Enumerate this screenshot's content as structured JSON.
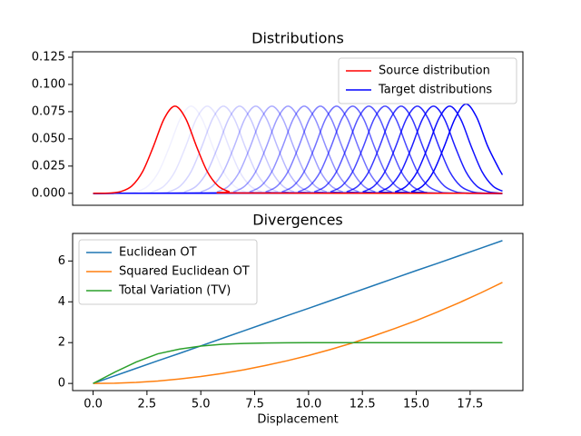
{
  "chart_data": [
    {
      "type": "line",
      "title": "Distributions",
      "xlim": [
        -0.95,
        19.95
      ],
      "ylim": [
        -0.011,
        0.13
      ],
      "yticks": [
        {
          "value": 0,
          "label": "0.000"
        },
        {
          "value": 0.025,
          "label": "0.025"
        },
        {
          "value": 0.05,
          "label": "0.050"
        },
        {
          "value": 0.075,
          "label": "0.075"
        },
        {
          "value": 0.1,
          "label": "0.100"
        },
        {
          "value": 0.125,
          "label": "0.125"
        }
      ],
      "legend": "upper right",
      "series": [
        {
          "name": "Source distribution",
          "color": "#ff0000",
          "x": [
            0,
            0.8,
            1.3,
            1.8,
            2.3,
            2.8,
            3.3,
            3.8,
            4.3,
            4.8,
            5.3,
            5.8,
            6.3,
            6.8,
            19
          ],
          "values": [
            0,
            0.0003,
            0.0017,
            0.0068,
            0.02,
            0.0431,
            0.0686,
            0.08,
            0.0686,
            0.0431,
            0.02,
            0.0068,
            0.0017,
            0.0003,
            0
          ]
        }
      ],
      "targets": {
        "name": "Target distributions",
        "color": "#0000ff",
        "curves": [
          {
            "alpha": 0.06,
            "x": [
              0,
              1.55,
              2.05,
              2.55,
              3.05,
              3.55,
              4.05,
              4.55,
              5.05,
              5.55,
              6.05,
              6.55,
              7.05,
              7.55,
              19
            ],
            "values": [
              0,
              0.0003,
              0.0017,
              0.0068,
              0.02,
              0.0431,
              0.0686,
              0.08,
              0.0686,
              0.0431,
              0.02,
              0.0068,
              0.0017,
              0.0003,
              0
            ]
          },
          {
            "alpha": 0.11,
            "x": [
              0,
              2.3,
              2.8,
              3.3,
              3.8,
              4.3,
              4.8,
              5.3,
              5.8,
              6.3,
              6.8,
              7.3,
              7.8,
              8.3,
              19
            ],
            "values": [
              0,
              0.0003,
              0.0017,
              0.0068,
              0.02,
              0.0431,
              0.0686,
              0.08,
              0.0686,
              0.0431,
              0.02,
              0.0068,
              0.0017,
              0.0003,
              0
            ]
          },
          {
            "alpha": 0.17,
            "x": [
              0,
              3.05,
              3.55,
              4.05,
              4.55,
              5.05,
              5.55,
              6.05,
              6.55,
              7.05,
              7.55,
              8.05,
              8.55,
              9.05,
              19
            ],
            "values": [
              0,
              0.0003,
              0.0017,
              0.0068,
              0.02,
              0.0431,
              0.0686,
              0.08,
              0.0686,
              0.0431,
              0.02,
              0.0068,
              0.0017,
              0.0003,
              0
            ]
          },
          {
            "alpha": 0.22,
            "x": [
              0,
              3.8,
              4.3,
              4.8,
              5.3,
              5.8,
              6.3,
              6.8,
              7.3,
              7.8,
              8.3,
              8.8,
              9.3,
              9.8,
              19
            ],
            "values": [
              0,
              0.0003,
              0.0017,
              0.0068,
              0.02,
              0.0431,
              0.0686,
              0.08,
              0.0686,
              0.0431,
              0.02,
              0.0068,
              0.0017,
              0.0003,
              0
            ]
          },
          {
            "alpha": 0.28,
            "x": [
              0,
              4.55,
              5.05,
              5.55,
              6.05,
              6.55,
              7.05,
              7.55,
              8.05,
              8.55,
              9.05,
              9.55,
              10.05,
              10.55,
              19
            ],
            "values": [
              0,
              0.0003,
              0.0017,
              0.0068,
              0.02,
              0.0431,
              0.0686,
              0.08,
              0.0686,
              0.0431,
              0.02,
              0.0068,
              0.0017,
              0.0003,
              0
            ]
          },
          {
            "alpha": 0.33,
            "x": [
              0,
              5.3,
              5.8,
              6.3,
              6.8,
              7.3,
              7.8,
              8.3,
              8.8,
              9.3,
              9.8,
              10.3,
              10.8,
              11.3,
              19
            ],
            "values": [
              0,
              0.0003,
              0.0017,
              0.0068,
              0.02,
              0.0431,
              0.0686,
              0.08,
              0.0686,
              0.0431,
              0.02,
              0.0068,
              0.0017,
              0.0003,
              0
            ]
          },
          {
            "alpha": 0.39,
            "x": [
              0,
              6.05,
              6.55,
              7.05,
              7.55,
              8.05,
              8.55,
              9.05,
              9.55,
              10.05,
              10.55,
              11.05,
              11.55,
              12.05,
              19
            ],
            "values": [
              0,
              0.0003,
              0.0017,
              0.0068,
              0.02,
              0.0431,
              0.0686,
              0.08,
              0.0686,
              0.0431,
              0.02,
              0.0068,
              0.0017,
              0.0003,
              0
            ]
          },
          {
            "alpha": 0.44,
            "x": [
              0,
              6.8,
              7.3,
              7.8,
              8.3,
              8.8,
              9.3,
              9.8,
              10.3,
              10.8,
              11.3,
              11.8,
              12.3,
              12.8,
              19
            ],
            "values": [
              0,
              0.0003,
              0.0017,
              0.0068,
              0.02,
              0.0431,
              0.0686,
              0.08,
              0.0686,
              0.0431,
              0.02,
              0.0068,
              0.0017,
              0.0003,
              0
            ]
          },
          {
            "alpha": 0.5,
            "x": [
              0,
              7.55,
              8.05,
              8.55,
              9.05,
              9.55,
              10.05,
              10.55,
              11.05,
              11.55,
              12.05,
              12.55,
              13.05,
              13.55,
              19
            ],
            "values": [
              0,
              0.0003,
              0.0017,
              0.0068,
              0.02,
              0.0431,
              0.0686,
              0.08,
              0.0686,
              0.0431,
              0.02,
              0.0068,
              0.0017,
              0.0003,
              0
            ]
          },
          {
            "alpha": 0.56,
            "x": [
              0,
              8.3,
              8.8,
              9.3,
              9.8,
              10.3,
              10.8,
              11.3,
              11.8,
              12.3,
              12.8,
              13.3,
              13.8,
              14.3,
              19
            ],
            "values": [
              0,
              0.0003,
              0.0017,
              0.0068,
              0.02,
              0.0431,
              0.0686,
              0.08,
              0.0686,
              0.0431,
              0.02,
              0.0068,
              0.0017,
              0.0003,
              0
            ]
          },
          {
            "alpha": 0.61,
            "x": [
              0,
              9.05,
              9.55,
              10.05,
              10.55,
              11.05,
              11.55,
              12.05,
              12.55,
              13.05,
              13.55,
              14.05,
              14.55,
              15.05,
              19
            ],
            "values": [
              0,
              0.0003,
              0.0017,
              0.0068,
              0.02,
              0.0431,
              0.0686,
              0.08,
              0.0686,
              0.0431,
              0.02,
              0.0068,
              0.0017,
              0.0003,
              0
            ]
          },
          {
            "alpha": 0.67,
            "x": [
              0,
              9.8,
              10.3,
              10.8,
              11.3,
              11.8,
              12.3,
              12.8,
              13.3,
              13.8,
              14.3,
              14.8,
              15.3,
              15.8,
              19
            ],
            "values": [
              0,
              0.0003,
              0.0017,
              0.0068,
              0.02,
              0.0431,
              0.0686,
              0.08,
              0.0686,
              0.0431,
              0.02,
              0.0068,
              0.0017,
              0.0003,
              0
            ]
          },
          {
            "alpha": 0.72,
            "x": [
              0,
              10.55,
              11.05,
              11.55,
              12.05,
              12.55,
              13.05,
              13.55,
              14.05,
              14.55,
              15.05,
              15.55,
              16.05,
              16.55,
              19
            ],
            "values": [
              0,
              0.0003,
              0.0017,
              0.0068,
              0.02,
              0.0431,
              0.0686,
              0.08,
              0.0686,
              0.0431,
              0.02,
              0.0068,
              0.0017,
              0.0003,
              0
            ]
          },
          {
            "alpha": 0.78,
            "x": [
              0,
              11.3,
              11.8,
              12.3,
              12.8,
              13.3,
              13.8,
              14.3,
              14.8,
              15.3,
              15.8,
              16.3,
              16.8,
              17.3,
              19
            ],
            "values": [
              0,
              0.0003,
              0.0017,
              0.0068,
              0.02,
              0.0431,
              0.0686,
              0.08,
              0.0686,
              0.0431,
              0.02,
              0.0068,
              0.0017,
              0.0003,
              0
            ]
          },
          {
            "alpha": 0.83,
            "x": [
              0,
              12.05,
              12.55,
              13.05,
              13.55,
              14.05,
              14.55,
              15.05,
              15.55,
              16.05,
              16.55,
              17.05,
              17.55,
              18.05,
              19
            ],
            "values": [
              0,
              0.0003,
              0.0017,
              0.0068,
              0.02,
              0.0431,
              0.0686,
              0.08,
              0.0686,
              0.0431,
              0.02,
              0.0068,
              0.0017,
              0.0003,
              0
            ]
          },
          {
            "alpha": 0.89,
            "x": [
              0,
              12.8,
              13.3,
              13.8,
              14.3,
              14.8,
              15.3,
              15.8,
              16.3,
              16.8,
              17.3,
              17.8,
              18.3,
              18.8,
              19
            ],
            "values": [
              0,
              0.0003,
              0.0017,
              0.0068,
              0.02,
              0.0431,
              0.0686,
              0.08,
              0.0686,
              0.0431,
              0.02,
              0.0068,
              0.0017,
              0.0003,
              0
            ]
          },
          {
            "alpha": 0.94,
            "x": [
              0,
              13.55,
              14.05,
              14.55,
              15.05,
              15.55,
              16.05,
              16.55,
              17.05,
              17.55,
              18.05,
              18.55,
              19
            ],
            "values": [
              0,
              0.0003,
              0.0017,
              0.0068,
              0.02,
              0.0431,
              0.0686,
              0.08,
              0.0686,
              0.0431,
              0.02,
              0.0068,
              0.002
            ]
          },
          {
            "alpha": 1,
            "x": [
              0,
              14.3,
              14.8,
              15.3,
              15.8,
              16.3,
              16.8,
              17.3,
              17.8,
              18.3,
              18.8,
              19
            ],
            "values": [
              0,
              0.0003,
              0.0017,
              0.0068,
              0.02,
              0.0431,
              0.0686,
              0.082,
              0.07,
              0.044,
              0.024,
              0.017
            ]
          }
        ]
      }
    },
    {
      "type": "line",
      "title": "Divergences",
      "xlabel": "Displacement",
      "x": [
        0,
        1,
        2,
        3,
        4,
        5,
        6,
        7,
        8,
        9,
        10,
        11,
        12,
        13,
        14,
        15,
        16,
        17,
        18,
        19
      ],
      "xlim": [
        -0.95,
        19.95
      ],
      "ylim": [
        -0.35,
        7.35
      ],
      "xticks": [
        {
          "value": 0,
          "label": "0.0"
        },
        2.5,
        {
          "value": 5,
          "label": "5.0"
        },
        7.5,
        {
          "value": 10,
          "label": "10.0"
        },
        12.5,
        {
          "value": 15,
          "label": "15.0"
        },
        17.5
      ],
      "yticks": [
        0,
        2,
        4,
        6
      ],
      "legend": "upper left",
      "series": [
        {
          "name": "Euclidean OT",
          "color": "#1f77b4",
          "values": [
            0,
            0.37,
            0.74,
            1.11,
            1.47,
            1.84,
            2.21,
            2.58,
            2.95,
            3.32,
            3.68,
            4.05,
            4.42,
            4.79,
            5.16,
            5.53,
            5.89,
            6.26,
            6.63,
            7.0
          ]
        },
        {
          "name": "Squared Euclidean OT",
          "color": "#ff7f0e",
          "values": [
            0,
            0.01,
            0.05,
            0.12,
            0.22,
            0.34,
            0.49,
            0.67,
            0.88,
            1.11,
            1.37,
            1.66,
            1.97,
            2.32,
            2.69,
            3.08,
            3.51,
            3.96,
            4.44,
            4.95
          ]
        },
        {
          "name": "Total Variation (TV)",
          "color": "#2ca02c",
          "values": [
            0,
            0.55,
            1.05,
            1.45,
            1.68,
            1.83,
            1.92,
            1.96,
            1.98,
            1.99,
            2,
            2,
            2,
            2,
            2,
            2,
            2,
            2,
            2,
            2
          ]
        }
      ]
    }
  ]
}
